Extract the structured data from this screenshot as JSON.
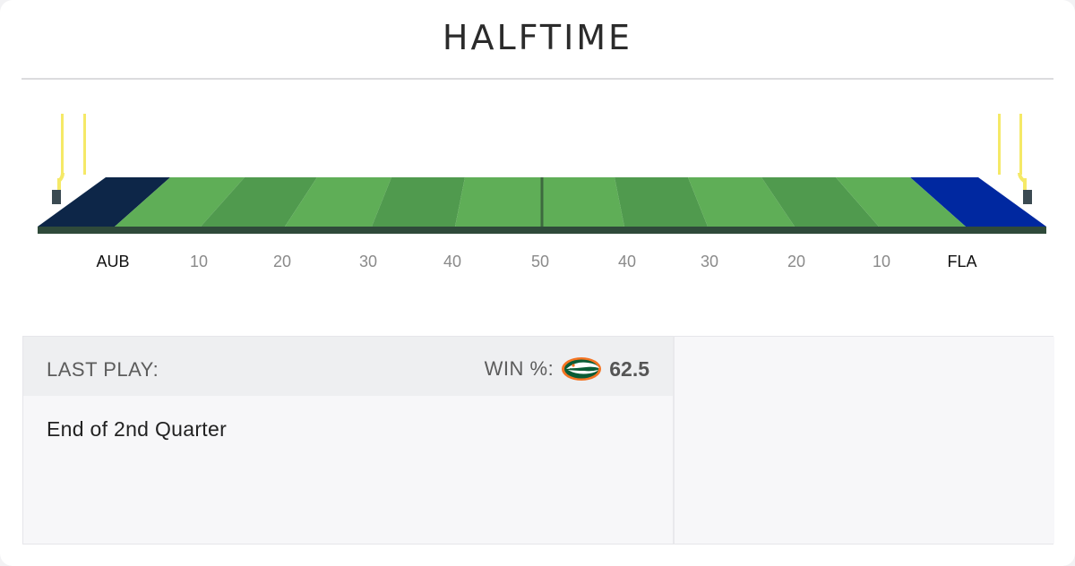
{
  "status": {
    "title": "HALFTIME"
  },
  "field": {
    "left_team": "AUB",
    "right_team": "FLA",
    "yard_markers": [
      "10",
      "20",
      "30",
      "40",
      "50",
      "40",
      "30",
      "20",
      "10"
    ],
    "colors": {
      "left_endzone": "#0d2648",
      "right_endzone": "#0028a0",
      "turf_light": "#5fae57",
      "turf_dark": "#509a4e",
      "field_edge": "#2f4a3a",
      "goalpost": "#f5e967"
    }
  },
  "last_play": {
    "label": "LAST PLAY:",
    "win_label": "WIN %:",
    "win_value": "62.5",
    "win_team_logo": "gator-logo-icon",
    "description": "End of 2nd Quarter"
  }
}
